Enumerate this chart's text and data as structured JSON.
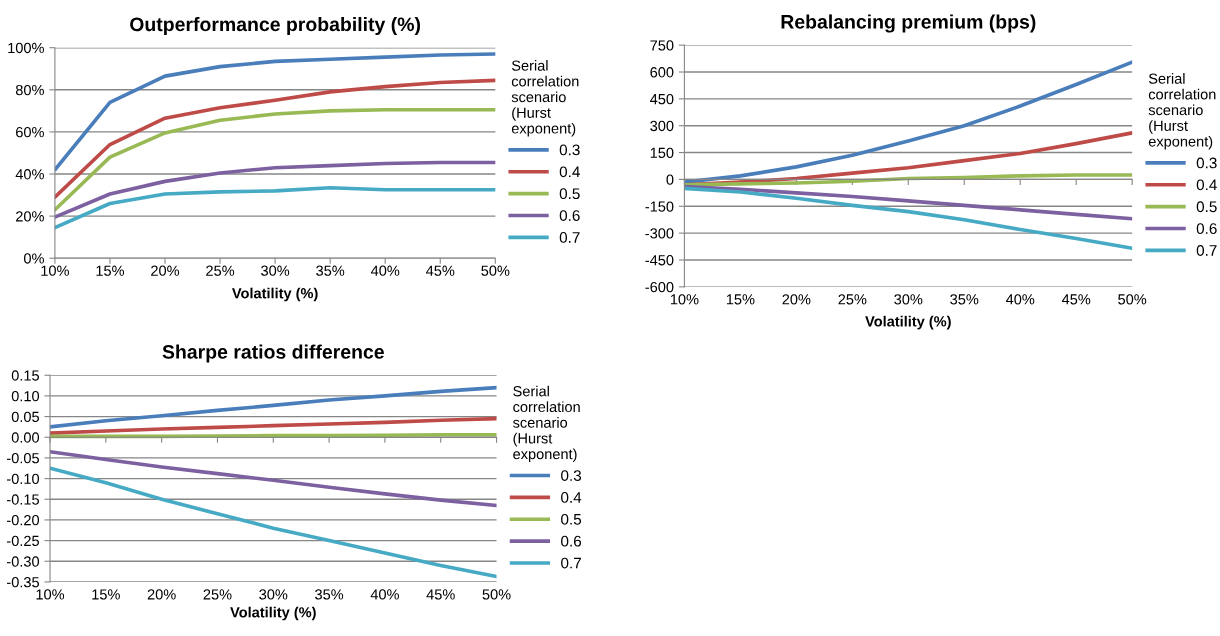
{
  "chart_data": [
    {
      "type": "line",
      "title": "Outperformance probability (%)",
      "xlabel": "Volatility (%)",
      "legend_title": "Serial correlation scenario (Hurst exponent)",
      "legend": "right",
      "grid": "y",
      "marker": "none",
      "line_style": "solid",
      "categories": [
        "10%",
        "15%",
        "20%",
        "25%",
        "30%",
        "35%",
        "40%",
        "45%",
        "50%"
      ],
      "ylim": [
        0,
        100
      ],
      "yticks": [
        {
          "value": 0,
          "label": "0%"
        },
        {
          "value": 20,
          "label": "20%"
        },
        {
          "value": 40,
          "label": "40%"
        },
        {
          "value": 60,
          "label": "60%"
        },
        {
          "value": 80,
          "label": "80%"
        },
        {
          "value": 100,
          "label": "100%"
        }
      ],
      "series": [
        {
          "name": "0.3",
          "color": "#4a7ebb",
          "values": [
            42,
            74,
            86.5,
            91,
            93.5,
            94.5,
            95.5,
            96.5,
            97
          ]
        },
        {
          "name": "0.4",
          "color": "#be4b48",
          "values": [
            29,
            54,
            66.5,
            71.5,
            75,
            79,
            81.5,
            83.5,
            84.5
          ]
        },
        {
          "name": "0.5",
          "color": "#98b954",
          "values": [
            23,
            48,
            59.5,
            65.5,
            68.5,
            70,
            70.5,
            70.5,
            70.5
          ]
        },
        {
          "name": "0.6",
          "color": "#7d60a0",
          "values": [
            19.5,
            30.5,
            36.5,
            40.5,
            43,
            44,
            45,
            45.5,
            45.5
          ]
        },
        {
          "name": "0.7",
          "color": "#46aac5",
          "values": [
            14.5,
            26,
            30.5,
            31.5,
            32,
            33.5,
            32.5,
            32.5,
            32.5
          ]
        }
      ]
    },
    {
      "type": "line",
      "title": "Rebalancing premium (bps)",
      "xlabel": "Volatility (%)",
      "legend_title": "Serial correlation scenario (Hurst exponent)",
      "legend": "right",
      "grid": "y",
      "marker": "none",
      "line_style": "solid",
      "categories": [
        "10%",
        "15%",
        "20%",
        "25%",
        "30%",
        "35%",
        "40%",
        "45%",
        "50%"
      ],
      "ylim": [
        -600,
        750
      ],
      "yticks": [
        -600,
        -450,
        -300,
        -150,
        0,
        150,
        300,
        450,
        600,
        750
      ],
      "series": [
        {
          "name": "0.3",
          "color": "#4a7ebb",
          "values": [
            -15,
            20,
            70,
            135,
            215,
            300,
            410,
            530,
            655
          ]
        },
        {
          "name": "0.4",
          "color": "#be4b48",
          "values": [
            -30,
            -15,
            5,
            35,
            65,
            105,
            145,
            200,
            260
          ]
        },
        {
          "name": "0.5",
          "color": "#98b954",
          "values": [
            -30,
            -25,
            -20,
            -10,
            5,
            10,
            20,
            25,
            25
          ]
        },
        {
          "name": "0.6",
          "color": "#7d60a0",
          "values": [
            -40,
            -55,
            -75,
            -95,
            -120,
            -145,
            -170,
            -195,
            -220
          ]
        },
        {
          "name": "0.7",
          "color": "#46aac5",
          "values": [
            -50,
            -70,
            -105,
            -145,
            -180,
            -225,
            -280,
            -330,
            -385
          ]
        }
      ]
    },
    {
      "type": "line",
      "title": "Sharpe ratios difference",
      "xlabel": "Volatility (%)",
      "legend_title": "Serial correlation scenario (Hurst exponent)",
      "legend": "right",
      "grid": "y",
      "marker": "none",
      "line_style": "solid",
      "categories": [
        "10%",
        "15%",
        "20%",
        "25%",
        "30%",
        "35%",
        "40%",
        "45%",
        "50%"
      ],
      "ylim": [
        -0.35,
        0.15
      ],
      "yticks": [
        {
          "value": -0.35,
          "label": "-0.35"
        },
        {
          "value": -0.3,
          "label": "-0.30"
        },
        {
          "value": -0.25,
          "label": "-0.25"
        },
        {
          "value": -0.2,
          "label": "-0.20"
        },
        {
          "value": -0.15,
          "label": "-0.15"
        },
        {
          "value": -0.1,
          "label": "-0.10"
        },
        {
          "value": -0.05,
          "label": "-0.05"
        },
        {
          "value": 0,
          "label": "0.00"
        },
        {
          "value": 0.05,
          "label": "0.05"
        },
        {
          "value": 0.1,
          "label": "0.10"
        },
        {
          "value": 0.15,
          "label": "0.15"
        }
      ],
      "series": [
        {
          "name": "0.3",
          "color": "#4a7ebb",
          "values": [
            0.025,
            0.04,
            0.052,
            0.065,
            0.077,
            0.09,
            0.1,
            0.111,
            0.12
          ]
        },
        {
          "name": "0.4",
          "color": "#be4b48",
          "values": [
            0.01,
            0.015,
            0.02,
            0.024,
            0.028,
            0.032,
            0.036,
            0.041,
            0.045
          ]
        },
        {
          "name": "0.5",
          "color": "#98b954",
          "values": [
            0.002,
            0.002,
            0.002,
            0.003,
            0.004,
            0.004,
            0.005,
            0.006,
            0.006
          ]
        },
        {
          "name": "0.6",
          "color": "#7d60a0",
          "values": [
            -0.035,
            -0.054,
            -0.072,
            -0.088,
            -0.104,
            -0.121,
            -0.137,
            -0.152,
            -0.165
          ]
        },
        {
          "name": "0.7",
          "color": "#46aac5",
          "values": [
            -0.075,
            -0.11,
            -0.15,
            -0.185,
            -0.22,
            -0.25,
            -0.28,
            -0.31,
            -0.337
          ]
        }
      ]
    }
  ]
}
